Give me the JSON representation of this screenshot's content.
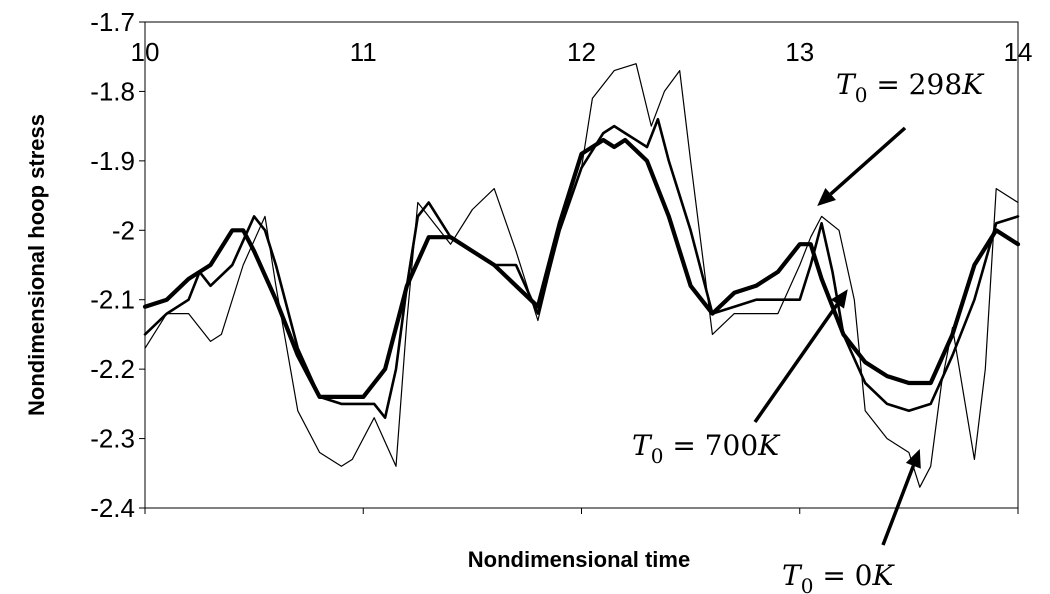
{
  "chart_data": {
    "type": "line",
    "title": "",
    "xlabel": "Nondimensional time",
    "ylabel": "Nondimensional hoop stress",
    "xlim": [
      10,
      14
    ],
    "ylim": [
      -2.4,
      -1.7
    ],
    "xticks": [
      10,
      11,
      12,
      13,
      14
    ],
    "xtick_labels": [
      "10",
      "11",
      "12",
      "13",
      "14"
    ],
    "yticks": [
      -1.7,
      -1.8,
      -1.9,
      -2.0,
      -2.1,
      -2.2,
      -2.3,
      -2.4
    ],
    "ytick_labels": [
      "-1.7",
      "-1.8",
      "-1.9",
      "-2",
      "-2.1",
      "-2.2",
      "-2.3",
      "-2.4"
    ],
    "x_tick_labels_position": "top",
    "grid": false,
    "legend": "none",
    "series": [
      {
        "line_style": "thin",
        "x": [
          10.0,
          10.1,
          10.2,
          10.3,
          10.35,
          10.45,
          10.55,
          10.6,
          10.7,
          10.8,
          10.9,
          10.95,
          11.05,
          11.15,
          11.2,
          11.25,
          11.3,
          11.4,
          11.5,
          11.6,
          11.7,
          11.8,
          11.9,
          12.0,
          12.05,
          12.15,
          12.25,
          12.32,
          12.38,
          12.45,
          12.5,
          12.6,
          12.7,
          12.8,
          12.9,
          13.0,
          13.05,
          13.1,
          13.18,
          13.25,
          13.3,
          13.4,
          13.5,
          13.55,
          13.6,
          13.65,
          13.7,
          13.8,
          13.85,
          13.9,
          14.0
        ],
        "y": [
          -2.17,
          -2.12,
          -2.12,
          -2.16,
          -2.15,
          -2.05,
          -1.98,
          -2.08,
          -2.26,
          -2.32,
          -2.34,
          -2.33,
          -2.27,
          -2.34,
          -2.13,
          -1.96,
          -1.98,
          -2.02,
          -1.97,
          -1.94,
          -2.03,
          -2.13,
          -2.0,
          -1.91,
          -1.81,
          -1.77,
          -1.76,
          -1.85,
          -1.8,
          -1.77,
          -1.9,
          -2.15,
          -2.12,
          -2.12,
          -2.12,
          -2.05,
          -2.01,
          -1.98,
          -2.0,
          -2.1,
          -2.26,
          -2.3,
          -2.32,
          -2.37,
          -2.34,
          -2.22,
          -2.14,
          -2.33,
          -2.2,
          -1.94,
          -1.96
        ]
      },
      {
        "line_style": "medium",
        "x": [
          10.0,
          10.1,
          10.2,
          10.25,
          10.3,
          10.4,
          10.5,
          10.55,
          10.6,
          10.7,
          10.8,
          10.9,
          11.0,
          11.05,
          11.1,
          11.15,
          11.2,
          11.25,
          11.3,
          11.4,
          11.5,
          11.6,
          11.7,
          11.8,
          11.9,
          12.0,
          12.1,
          12.15,
          12.2,
          12.3,
          12.35,
          12.4,
          12.5,
          12.6,
          12.7,
          12.8,
          12.9,
          13.0,
          13.05,
          13.1,
          13.15,
          13.2,
          13.3,
          13.4,
          13.5,
          13.6,
          13.7,
          13.8,
          13.9,
          14.0
        ],
        "y": [
          -2.15,
          -2.12,
          -2.1,
          -2.06,
          -2.08,
          -2.05,
          -1.98,
          -2.0,
          -2.05,
          -2.17,
          -2.24,
          -2.25,
          -2.25,
          -2.25,
          -2.27,
          -2.2,
          -2.08,
          -1.98,
          -1.96,
          -2.01,
          -2.03,
          -2.05,
          -2.05,
          -2.12,
          -2.0,
          -1.91,
          -1.86,
          -1.85,
          -1.86,
          -1.88,
          -1.84,
          -1.9,
          -2.0,
          -2.12,
          -2.11,
          -2.1,
          -2.1,
          -2.1,
          -2.05,
          -1.99,
          -2.06,
          -2.15,
          -2.22,
          -2.25,
          -2.26,
          -2.25,
          -2.18,
          -2.1,
          -1.99,
          -1.98
        ]
      },
      {
        "line_style": "thick",
        "x": [
          10.0,
          10.1,
          10.2,
          10.3,
          10.4,
          10.45,
          10.5,
          10.6,
          10.7,
          10.8,
          10.9,
          11.0,
          11.05,
          11.1,
          11.2,
          11.3,
          11.4,
          11.5,
          11.6,
          11.7,
          11.8,
          11.9,
          12.0,
          12.1,
          12.15,
          12.2,
          12.3,
          12.4,
          12.5,
          12.6,
          12.7,
          12.8,
          12.9,
          13.0,
          13.05,
          13.1,
          13.2,
          13.3,
          13.4,
          13.5,
          13.55,
          13.6,
          13.7,
          13.8,
          13.9,
          14.0
        ],
        "y": [
          -2.11,
          -2.1,
          -2.07,
          -2.05,
          -2.0,
          -2.0,
          -2.03,
          -2.1,
          -2.18,
          -2.24,
          -2.24,
          -2.24,
          -2.22,
          -2.2,
          -2.08,
          -2.01,
          -2.01,
          -2.03,
          -2.05,
          -2.08,
          -2.11,
          -1.99,
          -1.89,
          -1.87,
          -1.88,
          -1.87,
          -1.9,
          -1.98,
          -2.08,
          -2.12,
          -2.09,
          -2.08,
          -2.06,
          -2.02,
          -2.02,
          -2.07,
          -2.15,
          -2.19,
          -2.21,
          -2.22,
          -2.22,
          -2.22,
          -2.15,
          -2.05,
          -2.0,
          -2.02
        ]
      }
    ],
    "annotations": [
      {
        "name": "annot-298k",
        "text_sym": "T",
        "text_sub": "0",
        "text_rest": " = 298",
        "text_unit": "K",
        "arrow_to_x": 13.08,
        "arrow_to_y": -1.965
      },
      {
        "name": "annot-700k",
        "text_sym": "T",
        "text_sub": "0",
        "text_rest": " = 700",
        "text_unit": "K",
        "arrow_to_x": 13.22,
        "arrow_to_y": -2.085
      },
      {
        "name": "annot-0k",
        "text_sym": "T",
        "text_sub": "0",
        "text_rest": " = 0",
        "text_unit": "K",
        "arrow_to_x": 13.55,
        "arrow_to_y": -2.315
      }
    ]
  }
}
